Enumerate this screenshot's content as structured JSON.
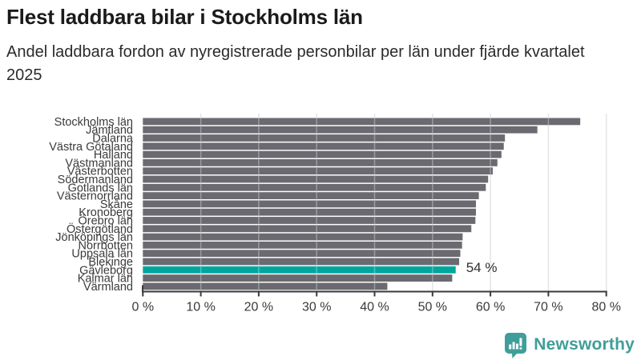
{
  "title": "Flest laddbara bilar i Stockholms län",
  "subtitle": "Andel laddbara fordon av nyregistrerade personbilar per län under fjärde kvartalet 2025",
  "chart_data": {
    "type": "bar",
    "orientation": "horizontal",
    "categories": [
      "Stockholms län",
      "Jämtland",
      "Dalarna",
      "Västra Götaland",
      "Halland",
      "Västmanland",
      "Västerbotten",
      "Södermanland",
      "Gotlands län",
      "Västernorrland",
      "Skåne",
      "Kronoberg",
      "Örebro län",
      "Östergötland",
      "Jönköpings län",
      "Norrbotten",
      "Uppsala län",
      "Blekinge",
      "Gävleborg",
      "Kalmar län",
      "Värmland"
    ],
    "values": [
      75.5,
      68.1,
      62.5,
      62.3,
      61.9,
      61.2,
      60.4,
      59.6,
      59.2,
      58.0,
      57.5,
      57.5,
      57.4,
      56.7,
      55.2,
      55.1,
      54.8,
      54.6,
      54.0,
      53.4,
      42.2
    ],
    "unit": "%",
    "xlim": [
      0,
      80
    ],
    "x_ticks": [
      "0 %",
      "10 %",
      "20 %",
      "30 %",
      "40 %",
      "50 %",
      "60 %",
      "70 %",
      "80 %"
    ],
    "grid": true,
    "legend": "none",
    "highlight": {
      "category": "Gävleborg",
      "index": 18,
      "value_label": "54 %",
      "color": "#00a69e"
    },
    "bar_color": "#6a6a70",
    "gridline_color": "#dadada",
    "axis_color": "#3a3a3a",
    "label_color": "#3a3a3a"
  },
  "branding": {
    "logo_text": "Newsworthy",
    "logo_color": "#3f9e99",
    "logo_icon": "bar-chart-speech-bubble-icon"
  }
}
